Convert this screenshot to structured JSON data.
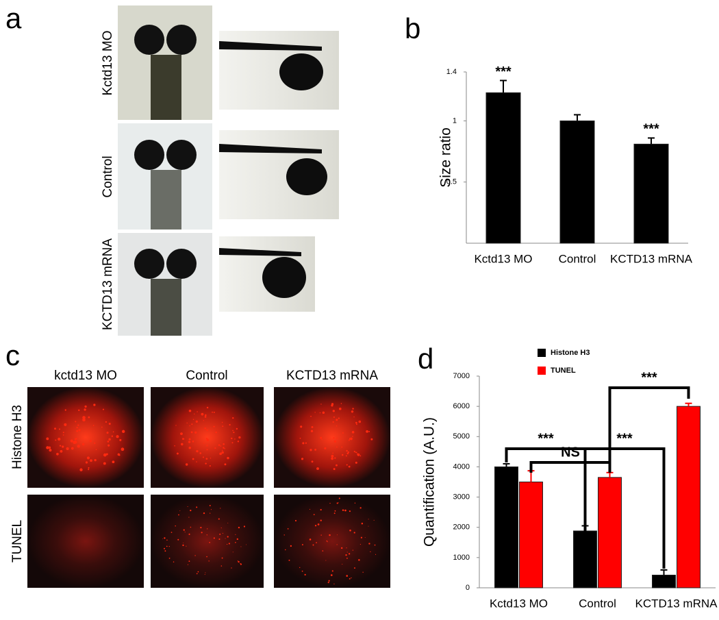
{
  "panel_a": {
    "label": "a",
    "rows": [
      "Kctd13 MO",
      "Control",
      "KCTD13 mRNA"
    ]
  },
  "panel_c": {
    "label": "c",
    "columns": [
      "kctd13 MO",
      "Control",
      "KCTD13 mRNA"
    ],
    "rows": [
      "Histone H3",
      "TUNEL"
    ]
  },
  "chart_data": [
    {
      "type": "bar",
      "label": "b",
      "y_label": "Size ratio",
      "categories": [
        "Kctd13 MO",
        "Control",
        "KCTD13 mRNA"
      ],
      "values": [
        1.23,
        1.0,
        0.81
      ],
      "errors": [
        0.1,
        0.05,
        0.05
      ],
      "color": "#000000",
      "annotations": [
        "***",
        null,
        "***"
      ],
      "ylim": [
        0,
        1.4
      ],
      "yticks": [
        0.5,
        1,
        1.4
      ]
    },
    {
      "type": "grouped_bar",
      "label": "d",
      "y_label": "Quantification (A.U.)",
      "categories": [
        "Kctd13 MO",
        "Control",
        "KCTD13 mRNA"
      ],
      "series": [
        {
          "name": "Histone H3",
          "color": "#000000",
          "values": [
            4000,
            1880,
            420
          ],
          "errors": [
            100,
            170,
            170
          ]
        },
        {
          "name": "TUNEL",
          "color": "#ff0000",
          "values": [
            3500,
            3650,
            6000
          ],
          "errors": [
            370,
            160,
            100
          ]
        }
      ],
      "annotations": [
        "***",
        "NS",
        "***",
        "***"
      ],
      "ylim": [
        0,
        7000
      ],
      "yticks": [
        0,
        1000,
        2000,
        3000,
        4000,
        5000,
        6000,
        7000
      ]
    }
  ]
}
